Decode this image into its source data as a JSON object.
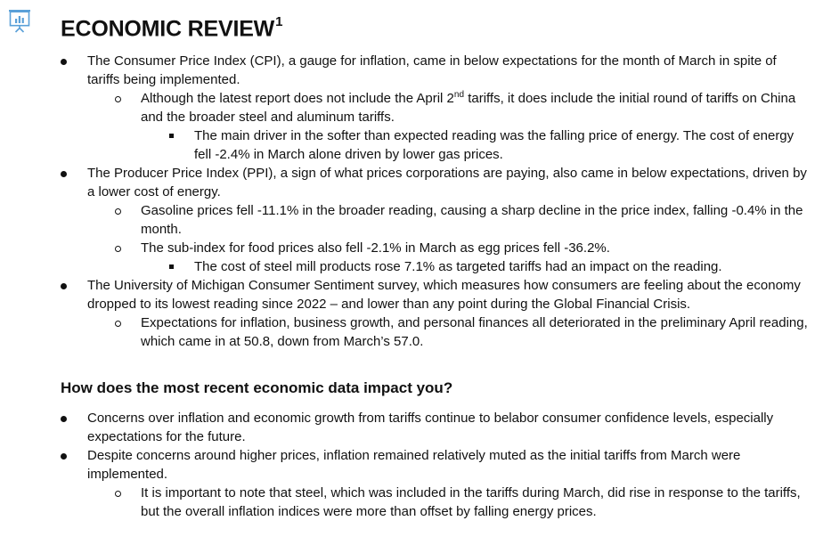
{
  "header": {
    "logo_icon": "presentation-chart-icon",
    "title": "ECONOMIC REVIEW",
    "title_footnote": "1"
  },
  "review": [
    {
      "level": 1,
      "text": "The Consumer Price Index (CPI), a gauge for inflation, came in below expectations for the month of March in spite of tariffs being implemented."
    },
    {
      "level": 2,
      "text_before": "Although the latest report does not include the April 2",
      "ordinal": "nd",
      "text_after": " tariffs, it does include the initial round of tariffs on China and the broader steel and aluminum tariffs."
    },
    {
      "level": 3,
      "text": "The main driver in the softer than expected reading was the falling price of energy. The cost of energy fell -2.4% in March alone driven by lower gas prices."
    },
    {
      "level": 1,
      "text": "The Producer Price Index (PPI), a sign of what prices corporations are paying, also came in below expectations, driven by a lower cost of energy."
    },
    {
      "level": 2,
      "text": "Gasoline prices fell -11.1% in the broader reading, causing a sharp decline in the price index, falling -0.4% in the month."
    },
    {
      "level": 2,
      "text": "The sub-index for food prices also fell -2.1% in March as egg prices fell -36.2%."
    },
    {
      "level": 3,
      "text": "The cost of steel mill products rose 7.1% as targeted tariffs had an impact on the reading."
    },
    {
      "level": 1,
      "text": "The University of Michigan Consumer Sentiment survey, which measures how consumers are feeling about the economy dropped to its lowest reading since 2022 – and lower than any point during the Global Financial Crisis."
    },
    {
      "level": 2,
      "text": "Expectations for inflation, business growth, and personal finances all deteriorated in the preliminary April reading, which came in at 50.8, down from March’s 57.0."
    }
  ],
  "impact": {
    "heading": "How does the most recent economic data impact you?",
    "items": [
      {
        "level": 1,
        "text": "Concerns over inflation and economic growth from tariffs continue to belabor consumer confidence levels, especially expectations for the future."
      },
      {
        "level": 1,
        "text": "Despite concerns around higher prices, inflation remained relatively muted as the initial tariffs from March were implemented."
      },
      {
        "level": 2,
        "text": "It is important to note that steel, which was included in the tariffs during March, did rise in response to the tariffs, but the overall inflation indices were more than offset by falling energy prices."
      }
    ]
  }
}
